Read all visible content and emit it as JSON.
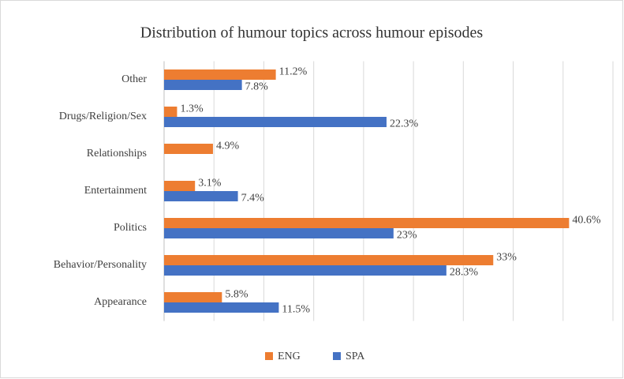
{
  "chart_data": {
    "type": "hbar",
    "title": "Distribution of humour topics across humour episodes",
    "categories": [
      "Other",
      "Drugs/Religion/Sex",
      "Relationships",
      "Entertainment",
      "Politics",
      "Behavior/Personality",
      "Appearance"
    ],
    "series": [
      {
        "name": "ENG",
        "color": "#ed7d31",
        "values": [
          11.2,
          1.3,
          4.9,
          3.1,
          40.6,
          33,
          5.8
        ],
        "value_labels": [
          "11.2%",
          "1.3%",
          "4.9%",
          "3.1%",
          "40.6%",
          "33%",
          "5.8%"
        ]
      },
      {
        "name": "SPA",
        "color": "#4472c4",
        "values": [
          7.8,
          22.3,
          null,
          7.4,
          23,
          28.3,
          11.5
        ],
        "value_labels": [
          "7.8%",
          "22.3%",
          null,
          "7.4%",
          "23%",
          "28.3%",
          "11.5%"
        ]
      }
    ],
    "xlim": [
      0,
      45
    ],
    "xticks": [
      0,
      5,
      10,
      15,
      20,
      25,
      30,
      35,
      40,
      45
    ],
    "grid": true,
    "legend": "bottom"
  }
}
